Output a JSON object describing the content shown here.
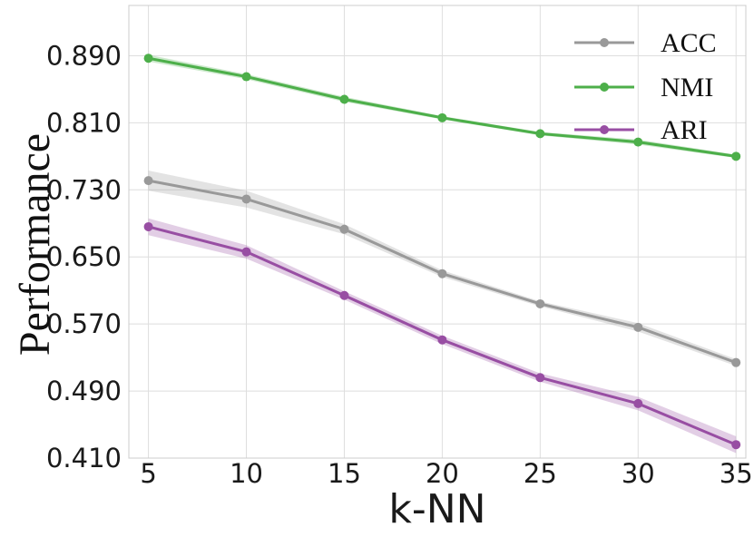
{
  "chart_data": {
    "type": "line",
    "title": "",
    "xlabel": "k-NN",
    "ylabel": "Performance",
    "x": [
      5,
      10,
      15,
      20,
      25,
      30,
      35
    ],
    "xticks": [
      "5",
      "10",
      "15",
      "20",
      "25",
      "30",
      "35"
    ],
    "yticks": [
      "0.410",
      "0.490",
      "0.570",
      "0.650",
      "0.730",
      "0.810",
      "0.890"
    ],
    "ylim": [
      0.41,
      0.95
    ],
    "xlim": [
      4,
      35.5
    ],
    "grid": true,
    "legend_position": "top-right",
    "series": [
      {
        "name": "ACC",
        "color": "#999999",
        "values": [
          0.741,
          0.719,
          0.683,
          0.63,
          0.594,
          0.566,
          0.524
        ],
        "band": [
          0.012,
          0.01,
          0.006,
          0.004,
          0.003,
          0.005,
          0.004
        ]
      },
      {
        "name": "NMI",
        "color": "#4daf4a",
        "values": [
          0.887,
          0.865,
          0.838,
          0.816,
          0.797,
          0.787,
          0.77
        ],
        "band": [
          0.004,
          0.003,
          0.003,
          0.002,
          0.002,
          0.003,
          0.002
        ]
      },
      {
        "name": "ARI",
        "color": "#984ea3",
        "values": [
          0.686,
          0.656,
          0.604,
          0.551,
          0.506,
          0.475,
          0.426
        ],
        "band": [
          0.01,
          0.008,
          0.005,
          0.005,
          0.005,
          0.008,
          0.01
        ]
      }
    ]
  }
}
